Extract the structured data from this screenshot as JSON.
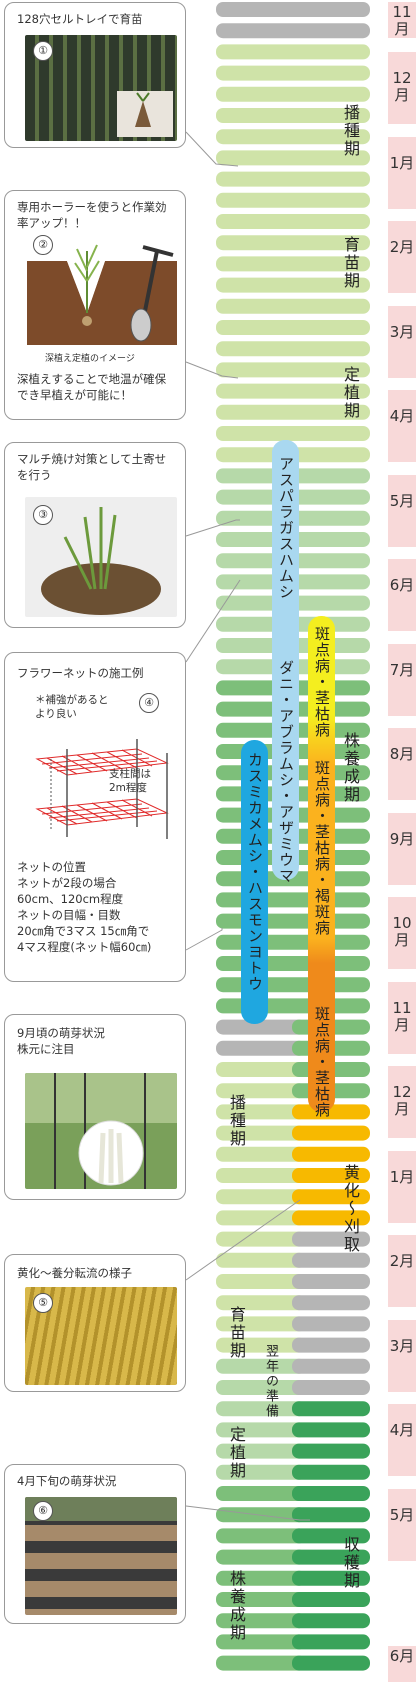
{
  "months": [
    "11月",
    "12月",
    "1月",
    "2月",
    "3月",
    "4月",
    "5月",
    "6月",
    "7月",
    "8月",
    "9月",
    "10月",
    "11月",
    "12月",
    "1月",
    "2月",
    "3月",
    "4月",
    "5月",
    "6月"
  ],
  "stages_main": {
    "sowing": "播種期",
    "nursery": "育苗期",
    "planting": "定植期",
    "growth": "株養成期"
  },
  "stages_second": {
    "sowing": "播種期",
    "nursery": "育苗期",
    "planting": "定植期",
    "growth": "株養成期",
    "prep": "翌年の準備",
    "yellowing": "黄化〜刈取",
    "harvest": "収穫期"
  },
  "pests": {
    "aphid": "アスパラガスハムシ",
    "mite": "ダニ・アブラムシ・アザミウマ",
    "caterpillar": "カスミカメムシ・ハスモンヨトウ"
  },
  "diseases": {
    "d1": "斑点病・茎枯病",
    "d2": "斑点病・茎枯病・褐斑病",
    "d3": "斑点病・茎枯病"
  },
  "cards": {
    "c1": {
      "text": "128穴セルトレイで育苗",
      "num": "①"
    },
    "c2": {
      "title": "専用ホーラーを使うと作業効率アップ！！",
      "num": "②",
      "caption": "深植え定植のイメージ",
      "body": "深植えすることで地温が確保でき早植えが可能に！"
    },
    "c3": {
      "text": "マルチ焼け対策として土寄せを行う",
      "num": "③"
    },
    "c4": {
      "title": "フラワーネットの施工例",
      "num": "④",
      "note1": "＊補強があると\nより良い",
      "note2": "支柱間は\n2m程度",
      "body": "ネットの位置\n ネットが2段の場合\n60cm、120cm程度\nネットの目幅・目数\n20㎝角で3マス 15㎝角で\n4マス程度(ネット幅60㎝)"
    },
    "c5": {
      "text": "9月頃の萌芽状況\n株元に注目"
    },
    "c6": {
      "text": "黄化〜養分転流の様子",
      "num": "⑤"
    },
    "c7": {
      "text": "4月下旬の萌芽状況",
      "num": "⑥"
    }
  },
  "colors": {
    "gray": "#b5b5b5",
    "light_green": "#cfe3a8",
    "pale_green": "#b6d9a9",
    "mid_green": "#7dbf7a",
    "dark_green": "#3aa35a",
    "yellow": "#f7b900",
    "month_bg": "#f8d9d9",
    "pill_blue": "#1fa7e0",
    "pill_lightblue": "#a9d8f0"
  }
}
